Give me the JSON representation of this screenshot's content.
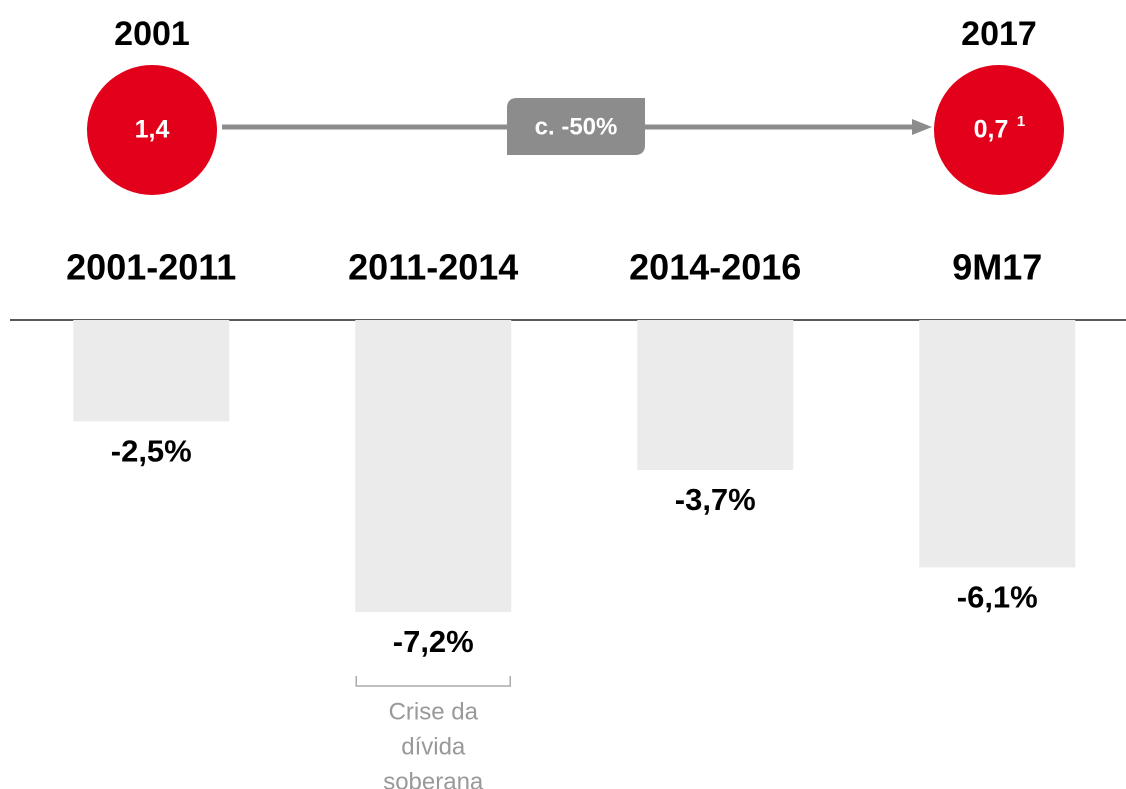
{
  "chart_data": {
    "type": "bar",
    "header": {
      "start": {
        "year": "2001",
        "value": "1,4"
      },
      "end": {
        "year": "2017",
        "value": "0,7",
        "footnote": "1"
      },
      "change": "c. -50%"
    },
    "categories": [
      "2001-2011",
      "2011-2014",
      "2014-2016",
      "9M17"
    ],
    "values": [
      -2.5,
      -7.2,
      -3.7,
      -6.1
    ],
    "value_labels": [
      "-2,5%",
      "-7,2%",
      "-3,7%",
      "-6,1%"
    ],
    "color": "#ebebeb",
    "annotation": {
      "lines": [
        "Crise da",
        "dívida",
        "soberana"
      ]
    }
  }
}
